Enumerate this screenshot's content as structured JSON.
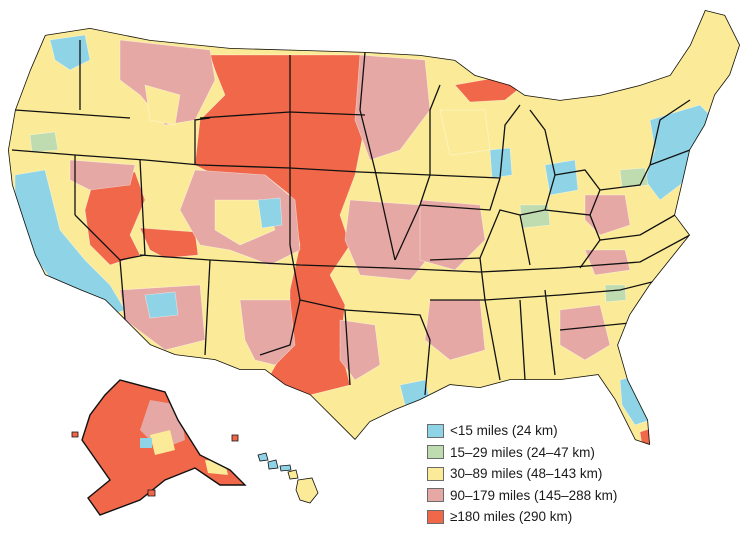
{
  "legend": {
    "items": [
      {
        "label": "<15 miles (24 km)",
        "color": "#8fd3e6"
      },
      {
        "label": "15–29 miles (24–47 km)",
        "color": "#bfdcb0"
      },
      {
        "label": "30–89 miles (48–143 km)",
        "color": "#fbeb98"
      },
      {
        "label": "90–179 miles (145–288 km)",
        "color": "#e6a8a4"
      },
      {
        "label": "≥180 miles (290 km)",
        "color": "#f0674a"
      }
    ]
  },
  "colors": {
    "border": "#111111",
    "land_base": "#fbeb98"
  }
}
